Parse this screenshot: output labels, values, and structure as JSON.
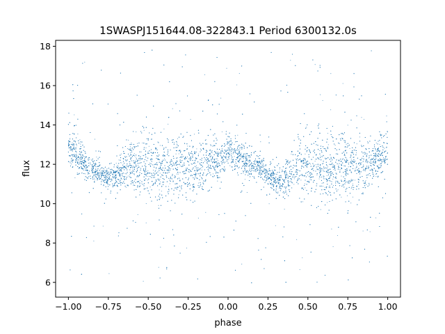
{
  "chart_data": {
    "type": "scatter",
    "title": "1SWASPJ151644.08-322843.1 Period 6300132.0s",
    "xlabel": "phase",
    "ylabel": "flux",
    "xlim": [
      -1.08,
      1.08
    ],
    "ylim": [
      5.25,
      18.3
    ],
    "x_ticks": [
      -1.0,
      -0.75,
      -0.5,
      -0.25,
      0.0,
      0.25,
      0.5,
      0.75,
      1.0
    ],
    "x_tick_labels": [
      "−1.00",
      "−0.75",
      "−0.50",
      "−0.25",
      "0.00",
      "0.25",
      "0.50",
      "0.75",
      "1.00"
    ],
    "y_ticks": [
      6,
      8,
      10,
      12,
      14,
      16,
      18
    ],
    "y_tick_labels": [
      "6",
      "8",
      "10",
      "12",
      "14",
      "16",
      "18"
    ],
    "grid": false,
    "color": "#1f77b4",
    "series": [
      {
        "x": [
          -1.0,
          -0.95,
          -0.9,
          -0.85,
          -0.8,
          -0.75,
          -0.7,
          -0.65,
          -0.6,
          -0.55,
          -0.5,
          -0.45,
          -0.4,
          -0.35,
          -0.3,
          -0.25,
          -0.2,
          -0.15,
          -0.1,
          -0.05,
          0.0,
          0.05,
          0.1,
          0.15,
          0.2,
          0.25,
          0.3,
          0.35,
          0.4,
          0.45,
          0.5,
          0.55,
          0.6,
          0.65,
          0.7,
          0.75,
          0.8,
          0.85,
          0.9,
          0.95,
          1.0
        ],
        "y_center": [
          12.8,
          12.5,
          12.1,
          11.8,
          11.5,
          11.3,
          11.4,
          11.8,
          12.0,
          11.9,
          11.9,
          11.8,
          11.7,
          11.8,
          12.0,
          11.9,
          11.8,
          11.9,
          12.2,
          12.4,
          12.5,
          12.4,
          12.2,
          12.0,
          11.8,
          11.5,
          11.2,
          11.3,
          11.7,
          11.9,
          11.9,
          11.8,
          11.7,
          11.8,
          12.0,
          11.9,
          11.8,
          11.9,
          12.0,
          12.3,
          12.8
        ],
        "y_spread": [
          0.8,
          0.9,
          0.8,
          0.6,
          0.5,
          0.5,
          0.6,
          0.9,
          1.1,
          1.3,
          1.4,
          1.5,
          1.4,
          1.4,
          1.5,
          1.4,
          1.3,
          1.2,
          1.0,
          0.8,
          0.7,
          0.7,
          0.7,
          0.6,
          0.5,
          0.5,
          0.5,
          0.7,
          1.1,
          1.4,
          1.5,
          1.5,
          1.5,
          1.4,
          1.4,
          1.4,
          1.3,
          1.2,
          1.0,
          0.9,
          0.8
        ],
        "y_min_observed": 5.8,
        "y_max_observed": 17.8
      }
    ]
  }
}
